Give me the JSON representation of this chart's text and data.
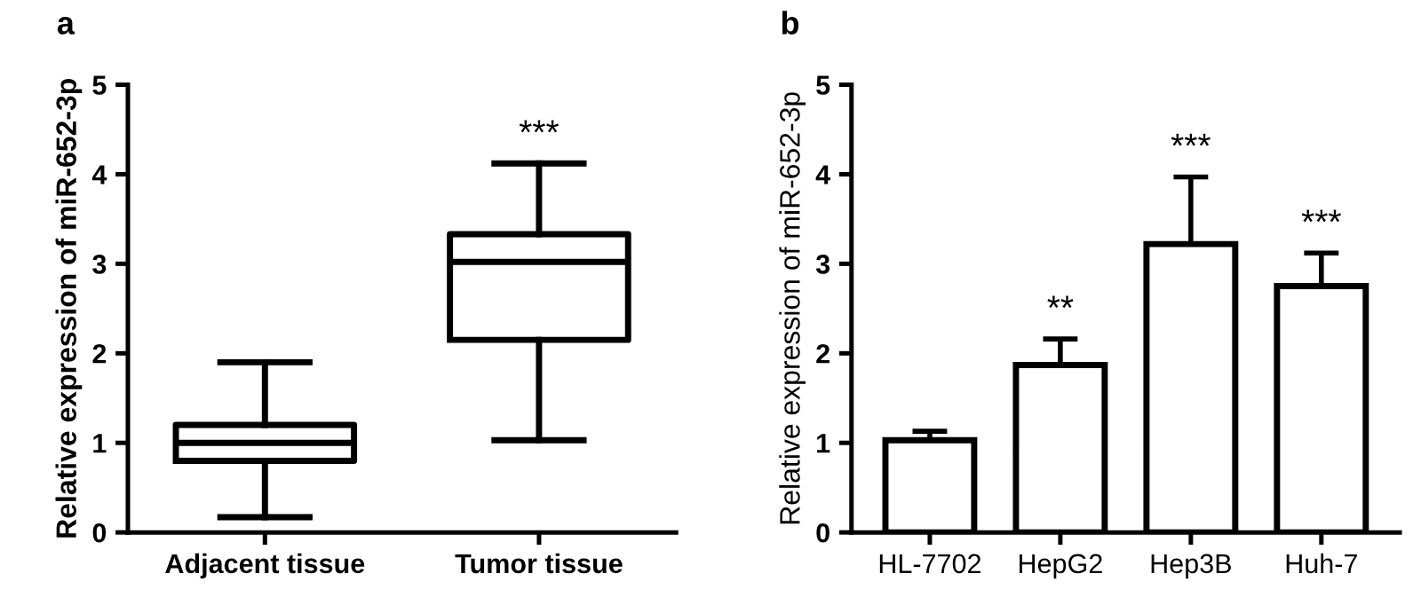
{
  "chart_data": [
    {
      "type": "box",
      "title": "a",
      "ylabel": "Relative expression of miR-652-3p",
      "categories": [
        "Adjacent tissue",
        "Tumor tissue"
      ],
      "boxes": [
        {
          "low": 0.17,
          "q1": 0.8,
          "median": 1.0,
          "q3": 1.2,
          "high": 1.9
        },
        {
          "low": 1.03,
          "q1": 2.15,
          "median": 3.02,
          "q3": 3.33,
          "high": 4.12
        }
      ],
      "ylim": [
        0,
        5
      ],
      "yticks": [
        0,
        1,
        2,
        3,
        4,
        5
      ],
      "grid": false,
      "annotations": [
        "***"
      ]
    },
    {
      "type": "bar",
      "title": "b",
      "ylabel": "Relative expression of miR-652-3p",
      "categories": [
        "HL-7702",
        "HepG2",
        "Hep3B",
        "Huh-7"
      ],
      "values": [
        1.03,
        1.87,
        3.22,
        2.75
      ],
      "color": "#ffffff",
      "errors": [
        [
          1.03,
          1.13
        ],
        [
          1.87,
          2.16
        ],
        [
          3.22,
          3.97
        ],
        [
          2.75,
          3.12
        ]
      ],
      "ylim": [
        0,
        5
      ],
      "yticks": [
        0,
        1,
        2,
        3,
        4,
        5
      ],
      "grid": false,
      "annotations": [
        "**",
        "***",
        "***"
      ]
    }
  ]
}
